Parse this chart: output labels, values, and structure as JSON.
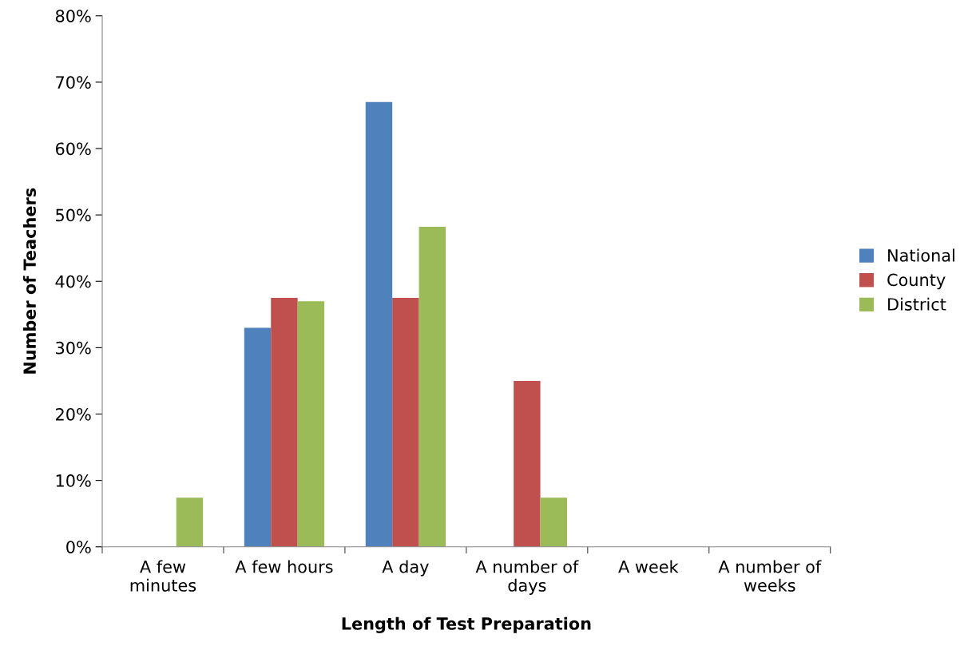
{
  "chart_data": {
    "type": "bar",
    "xlabel": "Length of Test Preparation",
    "ylabel": "Number of Teachers",
    "categories": [
      "A few\nminutes",
      "A few hours",
      "A day",
      "A number of\ndays",
      "A week",
      "A number of\nweeks"
    ],
    "series": [
      {
        "name": "National",
        "color": "#4f81bd",
        "values": [
          0,
          33,
          67,
          0,
          0,
          0
        ]
      },
      {
        "name": "County",
        "color": "#c0504d",
        "values": [
          0,
          37.5,
          37.5,
          25,
          0,
          0
        ]
      },
      {
        "name": "District",
        "color": "#9bbb59",
        "values": [
          7.4,
          37,
          48.2,
          7.4,
          0,
          0
        ]
      }
    ],
    "ylim": [
      0,
      80
    ],
    "yticks": [
      {
        "value": 0,
        "label": "0%"
      },
      {
        "value": 10,
        "label": "10%"
      },
      {
        "value": 20,
        "label": "20%"
      },
      {
        "value": 30,
        "label": "30%"
      },
      {
        "value": 40,
        "label": "40%"
      },
      {
        "value": 50,
        "label": "50%"
      },
      {
        "value": 60,
        "label": "60%"
      },
      {
        "value": 70,
        "label": "70%"
      },
      {
        "value": 80,
        "label": "80%"
      }
    ],
    "grid": false,
    "legend": "right"
  }
}
